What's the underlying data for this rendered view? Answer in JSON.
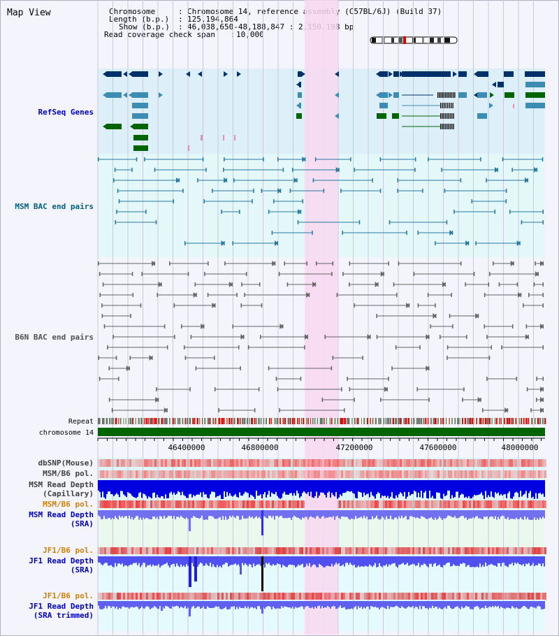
{
  "title": "Map View",
  "info": {
    "chromosome_key": "Chromosome",
    "chromosome_val": "Chromosome 14, reference assembly (C57BL/6J) (Build 37)",
    "length_key": "Length (b.p.)",
    "length_val": "125,194,864",
    "show_key": "Show (b.p.)",
    "show_val": "46,038,650-48,188,847 : 2,150,198 bp",
    "span_key": "Read coverage check span",
    "span_val": "10,000"
  },
  "tracks": {
    "refseq": "RefSeq Genes",
    "msm_bac": "MSM BAC end pairs",
    "b6n_bac": "B6N BAC end pairs",
    "repeat": "Repeat",
    "chrom": "chromosome 14",
    "dbsnp": "dbSNP(Mouse)",
    "msm_b6_pol_1": "MSM/B6 pol.",
    "msm_depth_cap_1": "MSM Read Depth",
    "msm_depth_cap_2": "(Capillary)",
    "msm_b6_pol_2": "MSM/B6 pol.",
    "msm_depth_sra_1": "MSM Read Depth",
    "msm_depth_sra_2": "(SRA)",
    "jf1_b6_pol_1": "JF1/B6 pol.",
    "jf1_depth_sra_1": "JF1 Read Depth",
    "jf1_depth_sra_2": "(SRA)",
    "jf1_b6_pol_2": "JF1/B6 pol.",
    "jf1_depth_trim_1": "JF1 Read Depth",
    "jf1_depth_trim_2": "(SRA trimmed)"
  },
  "axis": {
    "ticks": [
      "46400000",
      "46800000",
      "47200000",
      "47600000",
      "48000000"
    ]
  },
  "colors": {
    "refseq_label": "#0000c0",
    "msm_label": "#006080",
    "b6n_label": "#505050",
    "pol_label": "#d08000",
    "depth_label": "#0000c0",
    "highlight": "#f8d8f0",
    "chrom_bar": "#006400"
  }
}
